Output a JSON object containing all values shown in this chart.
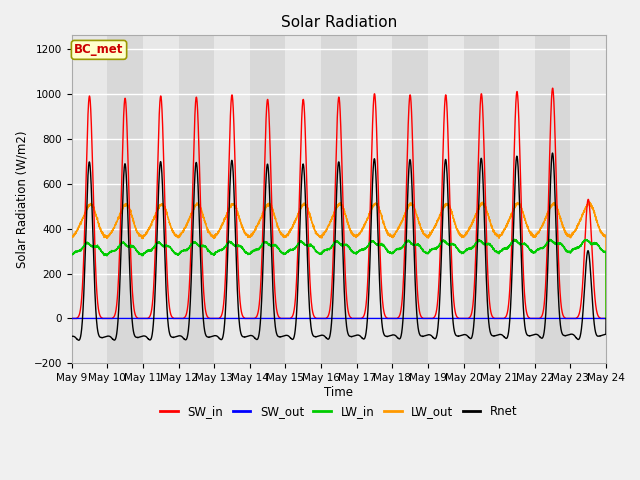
{
  "title": "Solar Radiation",
  "ylabel": "Solar Radiation (W/m2)",
  "xlabel": "Time",
  "ylim": [
    -200,
    1260
  ],
  "yticks": [
    -200,
    0,
    200,
    400,
    600,
    800,
    1000,
    1200
  ],
  "start_day": 9,
  "end_day": 24,
  "n_days": 15,
  "points_per_day": 288,
  "colors": {
    "SW_in": "#ff0000",
    "SW_out": "#0000ff",
    "LW_in": "#00cc00",
    "LW_out": "#ff9900",
    "Rnet": "#000000"
  },
  "legend_labels": [
    "SW_in",
    "SW_out",
    "LW_in",
    "LW_out",
    "Rnet"
  ],
  "annotation_text": "BC_met",
  "annotation_color": "#cc0000",
  "annotation_bg": "#ffffcc",
  "bg_stripe_colors": [
    "#e8e8e8",
    "#d8d8d8"
  ],
  "grid_color": "#ffffff",
  "SW_in_peaks": [
    990,
    980,
    990,
    985,
    995,
    975,
    975,
    985,
    1000,
    995,
    995,
    1000,
    1010,
    1025,
    530
  ],
  "night_rnet": -100,
  "lw_in_base": 270,
  "lw_out_base": 355
}
